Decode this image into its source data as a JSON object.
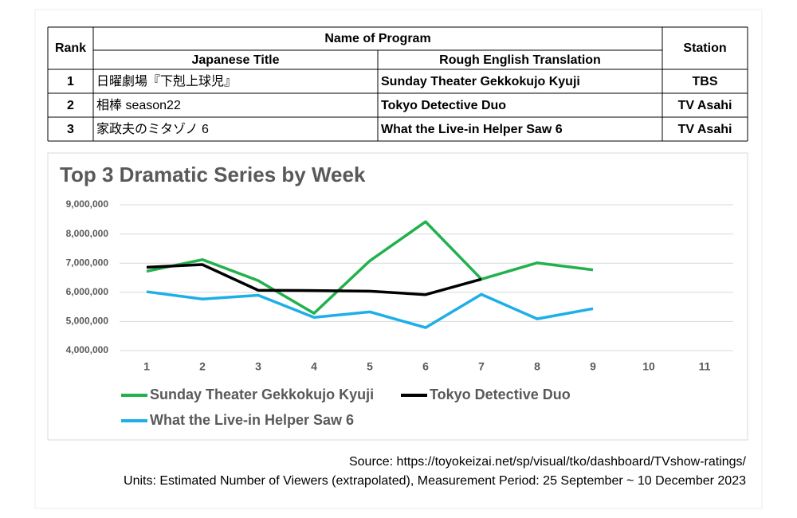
{
  "table": {
    "header": {
      "rank": "Rank",
      "name": "Name of Program",
      "japanese": "Japanese Title",
      "english": "Rough English Translation",
      "station": "Station"
    },
    "rows": [
      [
        "1",
        "日曜劇場『下剋上球児』",
        "Sunday Theater Gekkokujo Kyuji",
        "TBS"
      ],
      [
        "2",
        "相棒 season22",
        "Tokyo Detective Duo",
        "TV Asahi"
      ],
      [
        "3",
        "家政夫のミタゾノ 6",
        "What the Live-in Helper Saw 6",
        "TV Asahi"
      ]
    ]
  },
  "chart_data": {
    "type": "line",
    "title": "Top 3 Dramatic Series by Week",
    "categories": [
      "1",
      "2",
      "3",
      "4",
      "5",
      "6",
      "7",
      "8",
      "9",
      "10",
      "11"
    ],
    "series": [
      {
        "name": "Sunday Theater Gekkokujo Kyuji",
        "color": "#22b14c",
        "values": [
          6720000,
          7120000,
          6400000,
          5280000,
          7080000,
          8420000,
          6450000,
          7010000,
          6770000,
          null,
          null
        ]
      },
      {
        "name": "Tokyo Detective Duo",
        "color": "#000000",
        "values": [
          6860000,
          6950000,
          6070000,
          6060000,
          6040000,
          5920000,
          6450000,
          null,
          null,
          null,
          null
        ]
      },
      {
        "name": "What the Live-in Helper Saw 6",
        "color": "#1eaee8",
        "values": [
          6020000,
          5770000,
          5900000,
          5140000,
          5330000,
          4790000,
          5930000,
          5090000,
          5440000,
          null,
          null
        ]
      }
    ],
    "ylim": [
      4000000,
      9000000
    ],
    "yticks": [
      {
        "value": 4000000,
        "label": "4,000,000"
      },
      {
        "value": 5000000,
        "label": "5,000,000"
      },
      {
        "value": 6000000,
        "label": "6,000,000"
      },
      {
        "value": 7000000,
        "label": "7,000,000"
      },
      {
        "value": 8000000,
        "label": "8,000,000"
      },
      {
        "value": 9000000,
        "label": "9,000,000"
      }
    ],
    "grid": true
  },
  "source": "Source:  https://toyokeizai.net/sp/visual/tko/dashboard/TVshow-ratings/",
  "units": "Units:  Estimated Number of Viewers (extrapolated), Measurement Period:  25 September ~ 10 December 2023"
}
